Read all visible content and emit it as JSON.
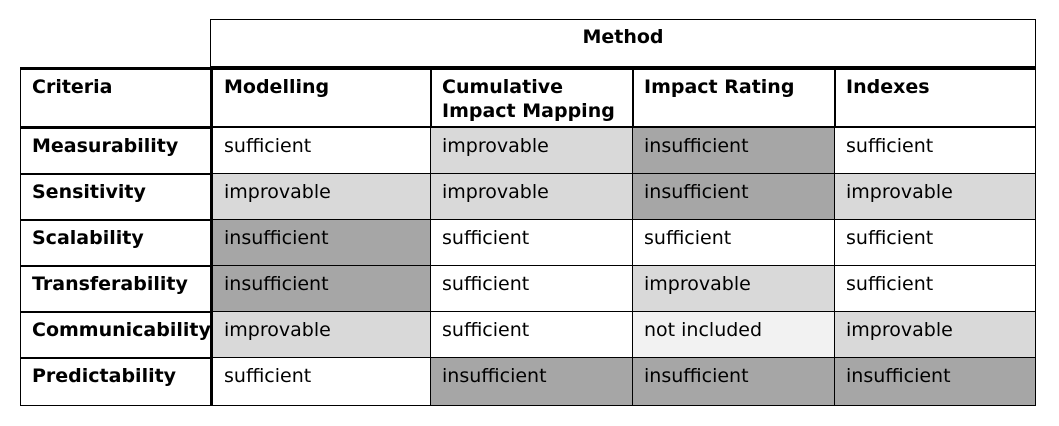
{
  "table": {
    "group_header": "Method",
    "corner_header": "Criteria",
    "columns": [
      "Modelling",
      "Cumulative Impact Mapping",
      "Impact Rating",
      "Indexes"
    ],
    "column_headers_display": [
      [
        "Modelling"
      ],
      [
        "Cumulative",
        "Impact Mapping"
      ],
      [
        "Impact Rating"
      ],
      [
        "Indexes"
      ]
    ],
    "rows": [
      {
        "criterion": "Measurability",
        "values": [
          "sufficient",
          "improvable",
          "insufficient",
          "sufficient"
        ]
      },
      {
        "criterion": "Sensitivity",
        "values": [
          "improvable",
          "improvable",
          "insufficient",
          "improvable"
        ]
      },
      {
        "criterion": "Scalability",
        "values": [
          "insufficient",
          "sufficient",
          "sufficient",
          "sufficient"
        ]
      },
      {
        "criterion": "Transferability",
        "values": [
          "insufficient",
          "sufficient",
          "improvable",
          "sufficient"
        ]
      },
      {
        "criterion": "Communicability",
        "values": [
          "improvable",
          "sufficient",
          "not included",
          "improvable"
        ]
      },
      {
        "criterion": "Predictability",
        "values": [
          "sufficient",
          "insufficient",
          "insufficient",
          "insufficient"
        ]
      }
    ],
    "shading": {
      "sufficient": "#ffffff",
      "improvable": "#d9d9d9",
      "insufficient": "#a6a6a6",
      "not included": "#f2f2f2"
    }
  }
}
